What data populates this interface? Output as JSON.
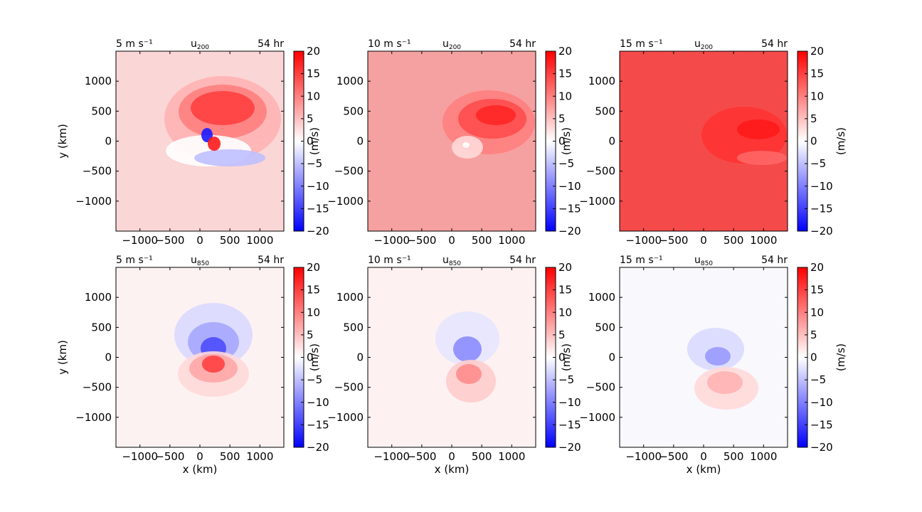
{
  "figure": {
    "panels": [
      {
        "row": 0,
        "col": 0,
        "left_label": "5 m s⁻¹",
        "var": "u",
        "level": "200",
        "time": "54 hr",
        "ylabel": "y (km)",
        "xlabel": "",
        "cb_label": "",
        "bg": "#fad6d6",
        "pattern": "u200_5"
      },
      {
        "row": 0,
        "col": 1,
        "left_label": "10 m s⁻¹",
        "var": "u",
        "level": "200",
        "time": "54 hr",
        "ylabel": "(m/s)",
        "xlabel": "",
        "cb_label": "",
        "bg": "#f6a1a1",
        "pattern": "u200_10"
      },
      {
        "row": 0,
        "col": 2,
        "left_label": "15 m s⁻¹",
        "var": "u",
        "level": "200",
        "time": "54 hr",
        "ylabel": "(m/s)",
        "xlabel": "",
        "cb_label": "(m/s)",
        "bg": "#f54a4a",
        "pattern": "u200_15"
      },
      {
        "row": 1,
        "col": 0,
        "left_label": "5 m s⁻¹",
        "var": "u",
        "level": "850",
        "time": "54 hr",
        "ylabel": "y (km)",
        "xlabel": "x (km)",
        "cb_label": "",
        "bg": "#fdf2f2",
        "pattern": "u850_5"
      },
      {
        "row": 1,
        "col": 1,
        "left_label": "10 m s⁻¹",
        "var": "u",
        "level": "850",
        "time": "54 hr",
        "ylabel": "(m/s)",
        "xlabel": "x (km)",
        "cb_label": "",
        "bg": "#fdf1f1",
        "pattern": "u850_10"
      },
      {
        "row": 1,
        "col": 2,
        "left_label": "15 m s⁻¹",
        "var": "u",
        "level": "850",
        "time": "54 hr",
        "ylabel": "(m/s)",
        "xlabel": "x (km)",
        "cb_label": "(m/s)",
        "bg": "#f8f8fd",
        "pattern": "u850_15"
      }
    ]
  },
  "chart_data": {
    "type": "heatmap",
    "xlim": [
      -1400,
      1400
    ],
    "ylim": [
      -1500,
      1500
    ],
    "x_ticks": [
      -1000,
      -500,
      0,
      500,
      1000
    ],
    "x_tick_labels": [
      "−1000",
      "−500",
      "0",
      "500",
      "1000"
    ],
    "y_ticks": [
      1000,
      500,
      0,
      -500,
      -1000
    ],
    "y_tick_labels": [
      "1000",
      "500",
      "0",
      "−500",
      "−1000"
    ],
    "colorbar_range": [
      -20,
      20
    ],
    "colorbar_ticks": [
      20,
      15,
      10,
      5,
      0,
      -5,
      -10,
      -15,
      -20
    ],
    "colorbar_tick_labels": [
      "20",
      "15",
      "10",
      "5",
      "0",
      "−5",
      "−10",
      "−15",
      "−20"
    ],
    "colormap": "bwr",
    "colormap_colors": [
      "#0000ff",
      "#ffffff",
      "#ff0000"
    ]
  }
}
